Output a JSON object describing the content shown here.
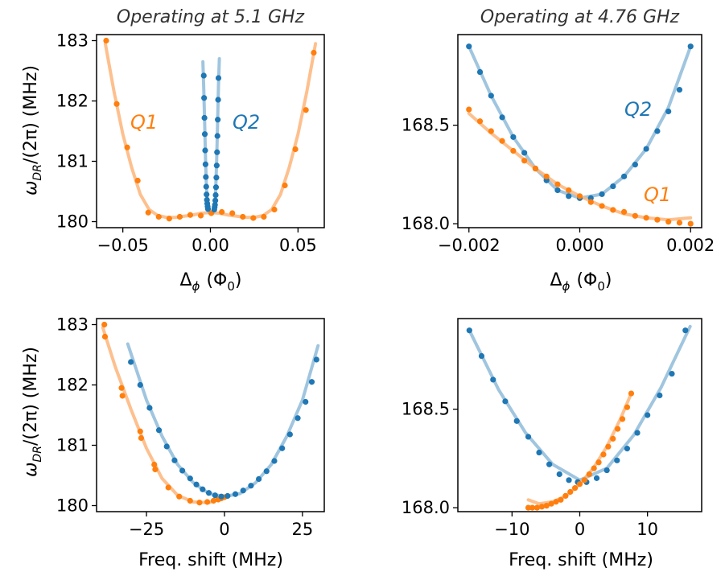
{
  "figure": {
    "ylabel_text": "ω",
    "ylabel_sub": "DR",
    "ylabel_tail": "/(2π) (MHz)",
    "flux_xlabel_main": "Δ",
    "flux_xlabel_sub": "ϕ",
    "flux_xlabel_tail": "(Φ",
    "flux_xlabel_sub2": "0",
    "flux_xlabel_close": ")",
    "freq_xlabel": "Freq. shift (MHz)"
  },
  "colors": {
    "q1": "#ff7f0e",
    "q1_fit": "#fdb57a",
    "q2": "#1f77b4",
    "q2_fit": "#8fbbd9"
  },
  "chart_data": [
    {
      "id": "a",
      "type": "scatter",
      "title": "Operating at 5.1 GHz",
      "xlabel": "Δϕ (Φ0)",
      "ylabel": "ωDR/(2π) (MHz)",
      "xlim": [
        -0.065,
        0.065
      ],
      "ylim": [
        179.9,
        183.1
      ],
      "xticks": [
        -0.05,
        0,
        0.05
      ],
      "xtick_labels": [
        "−0.05",
        "0.00",
        "0.05"
      ],
      "yticks": [
        180,
        181,
        182,
        183
      ],
      "ytick_labels": [
        "180",
        "181",
        "182",
        "183"
      ],
      "annotations": [
        {
          "text": "Q1",
          "series": "Q1",
          "x": -0.048,
          "y": 181.6
        },
        {
          "text": "Q2",
          "series": "Q2",
          "x": 0.016,
          "y": 181.6
        }
      ],
      "series": [
        {
          "name": "Q1",
          "color_key": "q1",
          "x": [
            -0.0595,
            -0.0535,
            -0.0475,
            -0.0415,
            -0.0355,
            -0.0295,
            -0.0235,
            -0.0175,
            -0.0115,
            -0.0055,
            0.0005,
            0.0065,
            0.0125,
            0.0185,
            0.0245,
            0.0305,
            0.0365,
            0.0425,
            0.0485,
            0.0545,
            0.059
          ],
          "y": [
            183.0,
            181.95,
            181.23,
            180.68,
            180.15,
            180.08,
            180.05,
            180.08,
            180.11,
            180.1,
            180.14,
            180.16,
            180.14,
            180.08,
            180.06,
            180.08,
            180.2,
            180.6,
            181.2,
            181.85,
            182.8
          ]
        },
        {
          "name": "Q1 fit",
          "color_key": "q1_fit",
          "line": true,
          "x": [
            -0.06,
            -0.055,
            -0.05,
            -0.045,
            -0.04,
            -0.035,
            -0.03,
            -0.025,
            -0.02,
            -0.015,
            -0.01,
            -0.005,
            0.0,
            0.005,
            0.01,
            0.015,
            0.02,
            0.025,
            0.03,
            0.035,
            0.04,
            0.045,
            0.05,
            0.055,
            0.06
          ],
          "y": [
            182.95,
            182.15,
            181.45,
            180.9,
            180.45,
            180.2,
            180.1,
            180.07,
            180.07,
            180.09,
            180.11,
            180.14,
            180.15,
            180.14,
            180.11,
            180.09,
            180.07,
            180.07,
            180.1,
            180.2,
            180.45,
            180.9,
            181.45,
            182.15,
            182.95
          ]
        },
        {
          "name": "Q2 (left branch)",
          "color_key": "q2",
          "x": [
            -0.0038,
            -0.0036,
            -0.0034,
            -0.0032,
            -0.003,
            -0.0028,
            -0.0026,
            -0.0024,
            -0.0022,
            -0.002,
            -0.0018,
            -0.0016,
            -0.0014
          ],
          "y": [
            182.42,
            182.05,
            181.72,
            181.45,
            181.18,
            180.95,
            180.74,
            180.58,
            180.45,
            180.36,
            180.3,
            180.25,
            180.21
          ]
        },
        {
          "name": "Q2 (right branch)",
          "color_key": "q2",
          "x": [
            0.0046,
            0.0044,
            0.0042,
            0.004,
            0.0038,
            0.0036,
            0.0034,
            0.0032,
            0.003,
            0.0028,
            0.0026,
            0.0024,
            0.0022
          ],
          "y": [
            182.38,
            182.02,
            181.69,
            181.42,
            181.15,
            180.93,
            180.73,
            180.57,
            180.44,
            180.35,
            180.28,
            180.24,
            180.2
          ]
        },
        {
          "name": "Q2 fit left",
          "color_key": "q2_fit",
          "line": true,
          "x": [
            -0.0043,
            -0.0038,
            -0.0033,
            -0.0028,
            -0.0023,
            -0.0018,
            -0.0013,
            -0.0008
          ],
          "y": [
            182.65,
            182.2,
            181.65,
            181.05,
            180.6,
            180.3,
            180.18,
            180.15
          ]
        },
        {
          "name": "Q2 fit right",
          "color_key": "q2_fit",
          "line": true,
          "x": [
            0.0051,
            0.0046,
            0.0041,
            0.0036,
            0.0031,
            0.0026,
            0.0021,
            0.0016
          ],
          "y": [
            182.7,
            182.25,
            181.65,
            181.05,
            180.6,
            180.3,
            180.18,
            180.15
          ]
        }
      ]
    },
    {
      "id": "b",
      "type": "scatter",
      "title": "Operating at 4.76 GHz",
      "xlabel": "Δϕ (Φ0)",
      "ylabel": "",
      "xlim": [
        -0.0022,
        0.0022
      ],
      "ylim": [
        167.98,
        168.96
      ],
      "xticks": [
        -0.002,
        0,
        0.002
      ],
      "xtick_labels": [
        "−0.002",
        "0.000",
        "0.002"
      ],
      "yticks": [
        168.0,
        168.5
      ],
      "ytick_labels": [
        "168.0",
        "168.5"
      ],
      "annotations": [
        {
          "text": "Q2",
          "series": "Q2",
          "x": 0.0012,
          "y": 168.56
        },
        {
          "text": "Q1",
          "series": "Q1",
          "x": 0.0012,
          "y": 168.1
        }
      ],
      "series": [
        {
          "name": "Q2",
          "color_key": "q2",
          "x": [
            -0.002,
            -0.0018,
            -0.0016,
            -0.0014,
            -0.0012,
            -0.001,
            -0.0008,
            -0.0006,
            -0.0004,
            -0.0002,
            0.0,
            0.0002,
            0.0004,
            0.0006,
            0.0008,
            0.001,
            0.0012,
            0.0014,
            0.0016,
            0.0018,
            0.002
          ],
          "y": [
            168.9,
            168.77,
            168.65,
            168.54,
            168.44,
            168.36,
            168.28,
            168.22,
            168.17,
            168.14,
            168.13,
            168.13,
            168.15,
            168.19,
            168.24,
            168.3,
            168.38,
            168.47,
            168.57,
            168.68,
            168.9
          ]
        },
        {
          "name": "Q2 fit",
          "color_key": "q2_fit",
          "line": true,
          "x": [
            -0.002,
            -0.0016,
            -0.0012,
            -0.0008,
            -0.0004,
            0.0,
            0.0004,
            0.0008,
            0.0012,
            0.0016,
            0.002
          ],
          "y": [
            168.9,
            168.65,
            168.44,
            168.28,
            168.17,
            168.13,
            168.15,
            168.24,
            168.38,
            168.59,
            168.9
          ]
        },
        {
          "name": "Q1",
          "color_key": "q1",
          "x": [
            -0.002,
            -0.0018,
            -0.0016,
            -0.0014,
            -0.0012,
            -0.001,
            -0.0008,
            -0.0006,
            -0.0004,
            -0.0002,
            0.0,
            0.0002,
            0.0004,
            0.0006,
            0.0008,
            0.001,
            0.0012,
            0.0014,
            0.0016,
            0.0018,
            0.002
          ],
          "y": [
            168.58,
            168.52,
            168.47,
            168.42,
            168.37,
            168.32,
            168.28,
            168.24,
            168.2,
            168.17,
            168.14,
            168.11,
            168.09,
            168.07,
            168.06,
            168.04,
            168.03,
            168.02,
            168.01,
            168.005,
            168.0
          ]
        },
        {
          "name": "Q1 fit",
          "color_key": "q1_fit",
          "line": true,
          "x": [
            -0.002,
            -0.0016,
            -0.0012,
            -0.0008,
            -0.0004,
            0.0,
            0.0004,
            0.0008,
            0.0012,
            0.0016,
            0.002
          ],
          "y": [
            168.56,
            168.46,
            168.37,
            168.28,
            168.2,
            168.14,
            168.09,
            168.05,
            168.03,
            168.02,
            168.03
          ]
        }
      ]
    },
    {
      "id": "c",
      "type": "scatter",
      "title": "",
      "xlabel": "Freq. shift (MHz)",
      "ylabel": "ωDR/(2π) (MHz)",
      "xlim": [
        -41,
        32
      ],
      "ylim": [
        179.9,
        183.1
      ],
      "xticks": [
        -25,
        0,
        25
      ],
      "xtick_labels": [
        "−25",
        "0",
        "25"
      ],
      "yticks": [
        180,
        181,
        182,
        183
      ],
      "ytick_labels": [
        "180",
        "181",
        "182",
        "183"
      ],
      "annotations": [],
      "series": [
        {
          "name": "Q1",
          "color_key": "q1",
          "x": [
            -38.5,
            -38.3,
            -33.0,
            -32.7,
            -27.0,
            -26.7,
            -22.5,
            -22.2,
            -18.0,
            -14.5,
            -11.0,
            -8.0,
            -5.5,
            -3.5,
            -2.0,
            -1.0,
            0.0
          ],
          "y": [
            183.0,
            182.8,
            181.95,
            181.82,
            181.23,
            181.12,
            180.68,
            180.6,
            180.3,
            180.15,
            180.08,
            180.05,
            180.06,
            180.08,
            180.1,
            180.12,
            180.14
          ]
        },
        {
          "name": "Q1 fit",
          "color_key": "q1_fit",
          "line": true,
          "x": [
            -39,
            -35,
            -30,
            -25,
            -20,
            -15,
            -10,
            -5,
            -2,
            0,
            1
          ],
          "y": [
            182.95,
            182.3,
            181.6,
            180.95,
            180.45,
            180.17,
            180.06,
            180.05,
            180.1,
            180.15,
            180.18
          ]
        },
        {
          "name": "Q2",
          "color_key": "q2",
          "x": [
            -30.0,
            -27.0,
            -24.0,
            -21.0,
            -18.5,
            -16.0,
            -13.5,
            -11.0,
            -9.0,
            -7.0,
            -5.0,
            -3.0,
            -1.0,
            1.0,
            3.5,
            6.0,
            8.5,
            11.0,
            13.5,
            16.0,
            18.5,
            21.0,
            23.5,
            26.0,
            28.0,
            29.5
          ],
          "y": [
            182.38,
            182.0,
            181.62,
            181.25,
            180.98,
            180.75,
            180.58,
            180.45,
            180.35,
            180.27,
            180.21,
            180.17,
            180.15,
            180.16,
            180.19,
            180.25,
            180.33,
            180.44,
            180.57,
            180.74,
            180.95,
            181.18,
            181.45,
            181.72,
            182.05,
            182.42
          ]
        },
        {
          "name": "Q2 fit",
          "color_key": "q2_fit",
          "line": true,
          "x": [
            -31,
            -25,
            -20,
            -15,
            -10,
            -5,
            0,
            5,
            10,
            15,
            20,
            25,
            30
          ],
          "y": [
            182.68,
            181.75,
            181.15,
            180.68,
            180.38,
            180.2,
            180.15,
            180.2,
            180.38,
            180.68,
            181.15,
            181.75,
            182.65
          ]
        }
      ]
    },
    {
      "id": "d",
      "type": "scatter",
      "title": "",
      "xlabel": "Freq. shift (MHz)",
      "ylabel": "",
      "xlim": [
        -18,
        18
      ],
      "ylim": [
        167.98,
        168.96
      ],
      "xticks": [
        -10,
        0,
        10
      ],
      "xtick_labels": [
        "−10",
        "0",
        "10"
      ],
      "yticks": [
        168.0,
        168.5
      ],
      "ytick_labels": [
        "168.0",
        "168.5"
      ],
      "annotations": [],
      "series": [
        {
          "name": "Q2",
          "color_key": "q2",
          "x": [
            -16.3,
            -14.5,
            -12.8,
            -11.0,
            -9.3,
            -7.6,
            -6.0,
            -4.5,
            -3.0,
            -1.6,
            -0.3,
            1.0,
            2.5,
            4.0,
            5.5,
            7.0,
            8.5,
            10.0,
            11.8,
            13.6,
            15.6
          ],
          "y": [
            168.9,
            168.77,
            168.65,
            168.54,
            168.44,
            168.36,
            168.28,
            168.22,
            168.17,
            168.14,
            168.13,
            168.13,
            168.15,
            168.19,
            168.24,
            168.3,
            168.38,
            168.47,
            168.57,
            168.68,
            168.9
          ]
        },
        {
          "name": "Q2 fit",
          "color_key": "q2_fit",
          "line": true,
          "x": [
            -16.3,
            -12,
            -8,
            -4,
            0,
            4,
            8,
            12,
            16.3
          ],
          "y": [
            168.9,
            168.6,
            168.38,
            168.22,
            168.14,
            168.2,
            168.37,
            168.61,
            168.92
          ]
        },
        {
          "name": "Q1",
          "color_key": "q1",
          "x": [
            -7.6,
            -7.0,
            -6.3,
            -5.6,
            -4.9,
            -4.2,
            -3.5,
            -2.8,
            -2.1,
            -1.4,
            -0.7,
            0.0,
            0.7,
            1.4,
            2.1,
            2.8,
            3.5,
            4.2,
            4.9,
            5.6,
            6.3,
            7.0,
            7.6
          ],
          "y": [
            168.0,
            168.0,
            168.0,
            168.005,
            168.01,
            168.02,
            168.03,
            168.04,
            168.06,
            168.08,
            168.1,
            168.12,
            168.14,
            168.17,
            168.2,
            168.23,
            168.27,
            168.31,
            168.35,
            168.4,
            168.45,
            168.51,
            168.58
          ]
        },
        {
          "name": "Q1 fit",
          "color_key": "q1_fit",
          "line": true,
          "x": [
            -7.6,
            -6,
            -4,
            -2,
            0,
            2,
            4,
            6,
            7.6
          ],
          "y": [
            168.04,
            168.02,
            168.03,
            168.06,
            168.12,
            168.2,
            168.31,
            168.45,
            168.58
          ]
        }
      ]
    }
  ]
}
